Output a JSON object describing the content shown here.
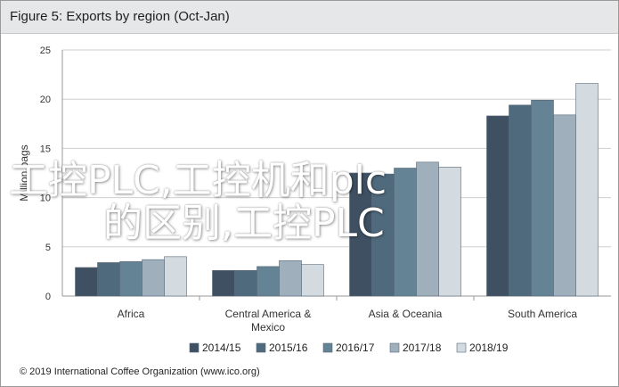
{
  "header": {
    "title": "Figure 5: Exports by region (Oct-Jan)"
  },
  "footer": {
    "text": "© 2019 International Coffee Organization (www.ico.org)"
  },
  "overlay": {
    "line1": "工控PLC,工控机和plc",
    "line2": "的区别,工控PLC"
  },
  "colors": {
    "2014/15": "#3e5062",
    "2015/16": "#506a7d",
    "2016/17": "#648394",
    "2017/18": "#9fb0bc",
    "2018/19": "#d3dae0"
  },
  "chart_data": {
    "type": "bar",
    "title": "Figure 5: Exports by region (Oct-Jan)",
    "xlabel": "",
    "ylabel": "Million bags",
    "ylim": [
      0,
      25
    ],
    "yticks": [
      0,
      5,
      10,
      15,
      20,
      25
    ],
    "grid": true,
    "legend_position": "bottom",
    "categories": [
      "Africa",
      "Central America & Mexico",
      "Asia & Oceania",
      "South America"
    ],
    "category_label_lines": [
      [
        "Africa"
      ],
      [
        "Central America &",
        "Mexico"
      ],
      [
        "Asia & Oceania"
      ],
      [
        "South America"
      ]
    ],
    "series": [
      {
        "name": "2014/15",
        "values": [
          2.9,
          2.6,
          12.5,
          18.3
        ]
      },
      {
        "name": "2015/16",
        "values": [
          3.4,
          2.6,
          12.4,
          19.4
        ]
      },
      {
        "name": "2016/17",
        "values": [
          3.5,
          3.0,
          13.0,
          19.9
        ]
      },
      {
        "name": "2017/18",
        "values": [
          3.7,
          3.6,
          13.6,
          18.4
        ]
      },
      {
        "name": "2018/19",
        "values": [
          4.0,
          3.2,
          13.1,
          21.6
        ]
      }
    ]
  }
}
